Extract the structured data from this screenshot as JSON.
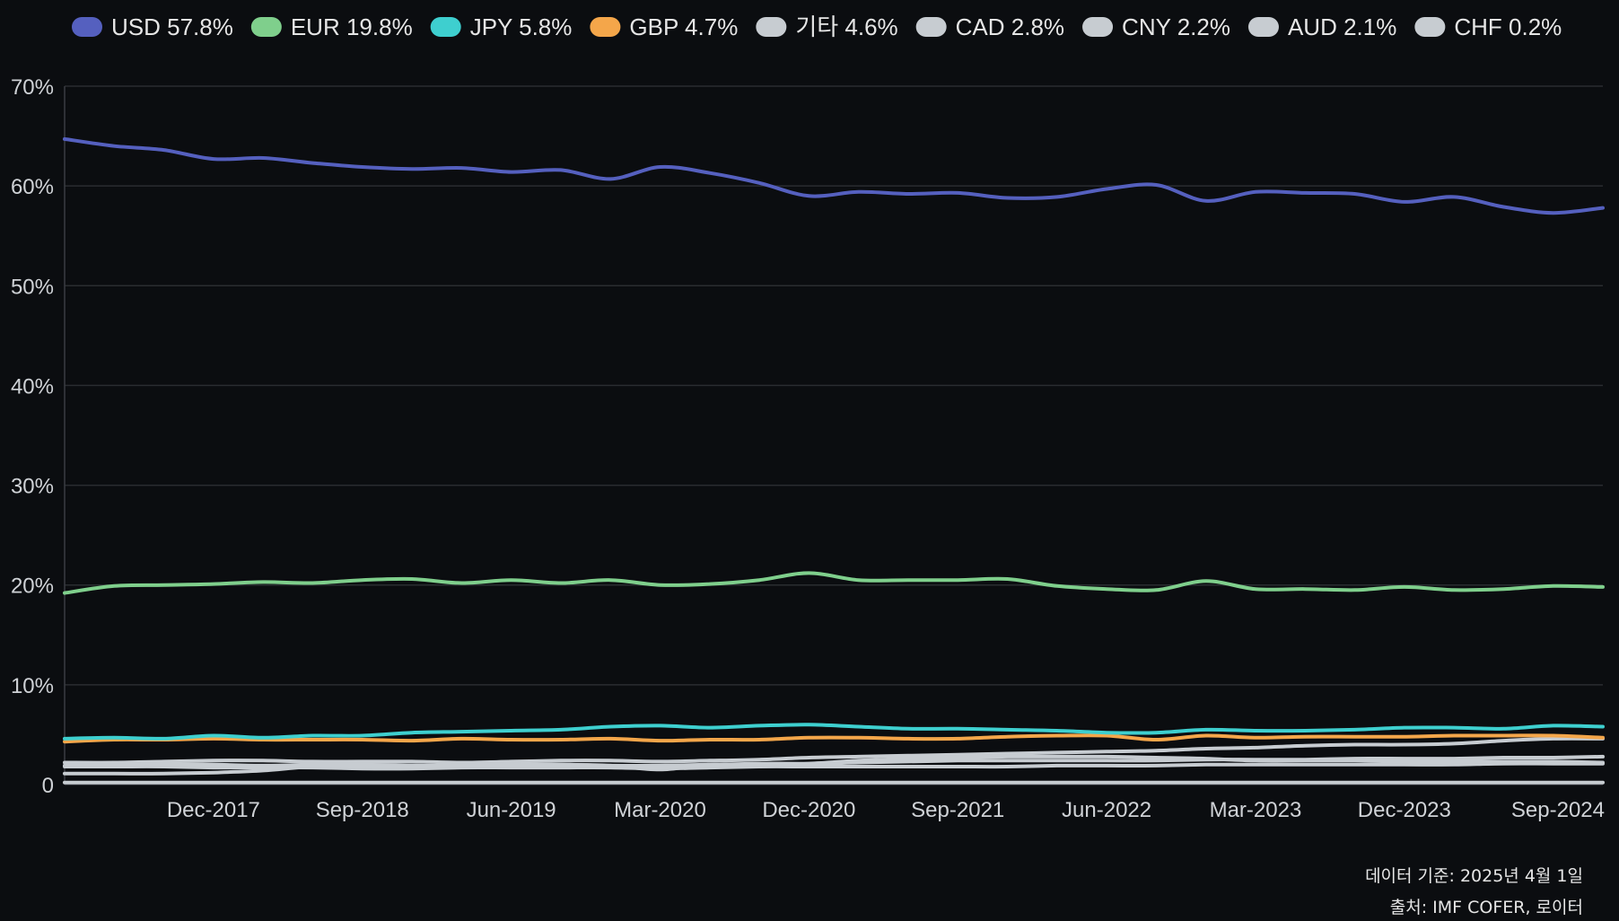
{
  "chart_data": {
    "type": "line",
    "x": [
      "Mar-2017",
      "Jun-2017",
      "Sep-2017",
      "Dec-2017",
      "Mar-2018",
      "Jun-2018",
      "Sep-2018",
      "Dec-2018",
      "Mar-2019",
      "Jun-2019",
      "Sep-2019",
      "Dec-2019",
      "Mar-2020",
      "Jun-2020",
      "Sep-2020",
      "Dec-2020",
      "Mar-2021",
      "Jun-2021",
      "Sep-2021",
      "Dec-2021",
      "Mar-2022",
      "Jun-2022",
      "Sep-2022",
      "Dec-2022",
      "Mar-2023",
      "Jun-2023",
      "Sep-2023",
      "Dec-2023",
      "Mar-2024",
      "Jun-2024",
      "Sep-2024",
      "Dec-2024"
    ],
    "x_tick_labels": [
      "Dec-2017",
      "Sep-2018",
      "Jun-2019",
      "Mar-2020",
      "Dec-2020",
      "Sep-2021",
      "Jun-2022",
      "Mar-2023",
      "Dec-2023",
      "Sep-2024"
    ],
    "y_tick_labels": [
      "0",
      "10%",
      "20%",
      "30%",
      "40%",
      "50%",
      "60%",
      "70%"
    ],
    "ylim": [
      0,
      70
    ],
    "grid": true,
    "legend_position": "top",
    "series": [
      {
        "name": "USD 57.8%",
        "color": "#5560bf",
        "values": [
          64.7,
          64.0,
          63.6,
          62.7,
          62.8,
          62.3,
          61.9,
          61.7,
          61.8,
          61.4,
          61.6,
          60.7,
          61.9,
          61.3,
          60.3,
          59.0,
          59.4,
          59.2,
          59.3,
          58.8,
          58.9,
          59.7,
          60.1,
          58.5,
          59.4,
          59.3,
          59.2,
          58.4,
          58.9,
          57.9,
          57.3,
          57.8
        ]
      },
      {
        "name": "EUR 19.8%",
        "color": "#7fcf8c",
        "values": [
          19.2,
          19.9,
          20.0,
          20.1,
          20.3,
          20.2,
          20.5,
          20.6,
          20.2,
          20.5,
          20.2,
          20.5,
          20.0,
          20.1,
          20.5,
          21.2,
          20.5,
          20.5,
          20.5,
          20.6,
          19.9,
          19.6,
          19.5,
          20.4,
          19.6,
          19.6,
          19.5,
          19.8,
          19.5,
          19.6,
          19.9,
          19.8
        ]
      },
      {
        "name": "JPY 5.8%",
        "color": "#3ecfcf",
        "values": [
          4.6,
          4.7,
          4.6,
          4.9,
          4.7,
          4.9,
          4.9,
          5.2,
          5.3,
          5.4,
          5.5,
          5.8,
          5.9,
          5.7,
          5.9,
          6.0,
          5.8,
          5.6,
          5.6,
          5.5,
          5.4,
          5.2,
          5.2,
          5.5,
          5.4,
          5.4,
          5.5,
          5.7,
          5.7,
          5.6,
          5.9,
          5.8
        ]
      },
      {
        "name": "GBP 4.7%",
        "color": "#f4a64a",
        "values": [
          4.3,
          4.5,
          4.5,
          4.6,
          4.5,
          4.5,
          4.5,
          4.4,
          4.6,
          4.5,
          4.5,
          4.6,
          4.4,
          4.5,
          4.5,
          4.7,
          4.7,
          4.6,
          4.6,
          4.8,
          4.9,
          4.9,
          4.5,
          4.9,
          4.7,
          4.8,
          4.8,
          4.8,
          4.9,
          4.9,
          4.9,
          4.7
        ]
      },
      {
        "name": "기타 4.6%",
        "color": "#c7ccd1",
        "values": [
          2.2,
          2.2,
          2.3,
          2.4,
          2.4,
          2.3,
          2.3,
          2.3,
          2.2,
          2.3,
          2.4,
          2.4,
          2.3,
          2.4,
          2.5,
          2.7,
          2.8,
          2.9,
          3.0,
          3.1,
          3.2,
          3.3,
          3.4,
          3.6,
          3.7,
          3.9,
          4.0,
          4.0,
          4.1,
          4.4,
          4.6,
          4.6
        ]
      },
      {
        "name": "CAD 2.8%",
        "color": "#c7ccd1",
        "values": [
          1.9,
          1.9,
          2.0,
          2.0,
          1.9,
          2.0,
          2.0,
          1.9,
          1.9,
          1.9,
          2.0,
          1.9,
          1.9,
          2.0,
          2.1,
          2.1,
          2.2,
          2.3,
          2.4,
          2.4,
          2.4,
          2.4,
          2.4,
          2.5,
          2.5,
          2.5,
          2.6,
          2.6,
          2.6,
          2.7,
          2.7,
          2.8
        ]
      },
      {
        "name": "CNY 2.2%",
        "color": "#c7ccd1",
        "values": [
          1.1,
          1.1,
          1.1,
          1.2,
          1.4,
          1.8,
          1.8,
          1.9,
          1.9,
          2.0,
          2.0,
          1.9,
          1.5,
          2.0,
          2.0,
          2.1,
          2.4,
          2.6,
          2.7,
          2.8,
          2.8,
          2.8,
          2.7,
          2.6,
          2.4,
          2.4,
          2.4,
          2.3,
          2.3,
          2.3,
          2.3,
          2.2
        ]
      },
      {
        "name": "AUD 2.1%",
        "color": "#c7ccd1",
        "values": [
          1.8,
          1.8,
          1.8,
          1.7,
          1.7,
          1.7,
          1.6,
          1.6,
          1.7,
          1.7,
          1.7,
          1.7,
          1.6,
          1.7,
          1.8,
          1.8,
          1.8,
          1.8,
          1.8,
          1.8,
          1.9,
          1.9,
          1.9,
          2.0,
          2.0,
          2.0,
          2.0,
          2.0,
          2.0,
          2.1,
          2.1,
          2.1
        ]
      },
      {
        "name": "CHF 0.2%",
        "color": "#c7ccd1",
        "values": [
          0.2,
          0.2,
          0.2,
          0.2,
          0.2,
          0.2,
          0.2,
          0.2,
          0.2,
          0.2,
          0.2,
          0.2,
          0.2,
          0.2,
          0.2,
          0.2,
          0.2,
          0.2,
          0.2,
          0.2,
          0.2,
          0.2,
          0.2,
          0.2,
          0.2,
          0.2,
          0.2,
          0.2,
          0.2,
          0.2,
          0.2,
          0.2
        ]
      }
    ]
  },
  "footer": {
    "data_date": "데이터 기준: 2025년 4월 1일",
    "source": "출처: IMF COFER, 로이터"
  },
  "colors": {
    "background": "#0b0d10",
    "grid": "#2a2d31",
    "axis": "#3a3d42"
  }
}
